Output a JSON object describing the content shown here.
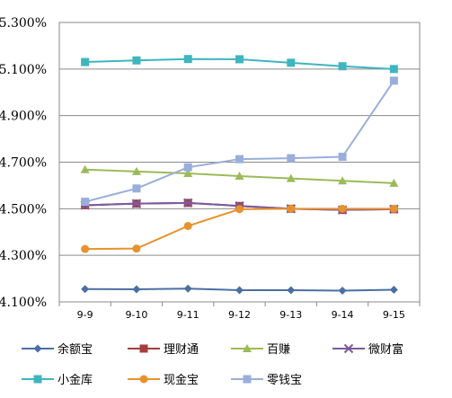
{
  "chart_data": {
    "type": "line",
    "categories": [
      "9-9",
      "9-10",
      "9-11",
      "9-12",
      "9-13",
      "9-14",
      "9-15"
    ],
    "ylim": [
      4.1,
      5.3
    ],
    "yticks": [
      "4.100%",
      "4.300%",
      "4.500%",
      "4.700%",
      "4.900%",
      "5.100%",
      "5.300%"
    ],
    "grid": "horizontal",
    "legend_position": "bottom",
    "series": [
      {
        "name": "余额宝",
        "color": "#4a6fa5",
        "marker": "diamond",
        "values": [
          4.155,
          4.154,
          4.157,
          4.15,
          4.15,
          4.148,
          4.152
        ]
      },
      {
        "name": "理财通",
        "color": "#a63d3d",
        "marker": "square",
        "values": [
          4.515,
          4.522,
          4.525,
          4.512,
          4.5,
          4.495,
          4.498
        ]
      },
      {
        "name": "百赚",
        "color": "#9bbb59",
        "marker": "triangle",
        "values": [
          4.668,
          4.66,
          4.652,
          4.64,
          4.63,
          4.62,
          4.61
        ]
      },
      {
        "name": "微财富",
        "color": "#7d5a9c",
        "marker": "x",
        "values": [
          4.515,
          4.522,
          4.525,
          4.512,
          4.5,
          4.495,
          4.498
        ]
      },
      {
        "name": "小金库",
        "color": "#3fb5bf",
        "marker": "square",
        "values": [
          5.13,
          5.137,
          5.143,
          5.142,
          5.127,
          5.112,
          5.1
        ]
      },
      {
        "name": "现金宝",
        "color": "#e8922d",
        "marker": "circle",
        "values": [
          4.327,
          4.329,
          4.426,
          4.498,
          4.5,
          4.5,
          4.5
        ]
      },
      {
        "name": "零钱宝",
        "color": "#9aaedb",
        "marker": "square",
        "values": [
          4.53,
          4.587,
          4.678,
          4.713,
          4.717,
          4.723,
          5.05
        ]
      }
    ]
  }
}
